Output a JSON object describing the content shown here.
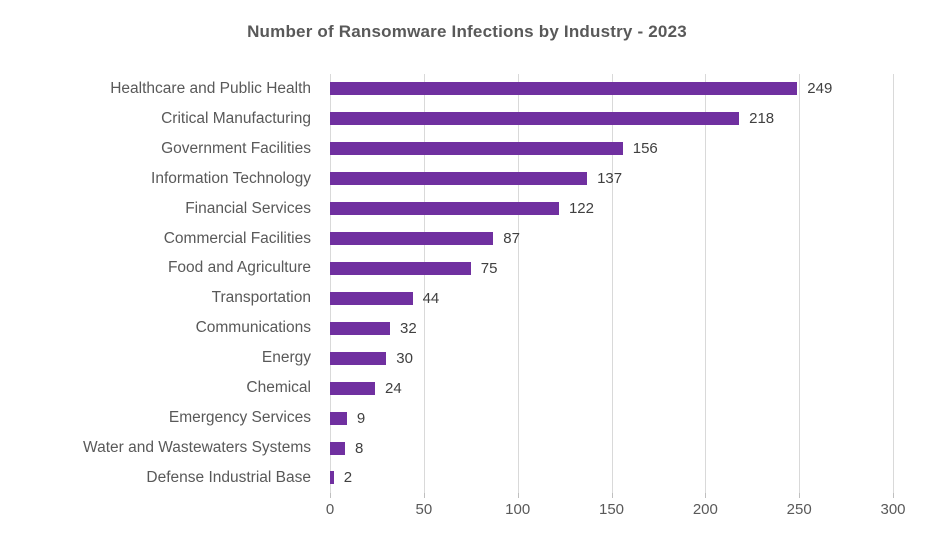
{
  "chart_data": {
    "type": "bar",
    "orientation": "horizontal",
    "title": "Number of Ransomware Infections by Industry - 2023",
    "categories": [
      "Healthcare and Public Health",
      "Critical Manufacturing",
      "Government Facilities",
      "Information Technology",
      "Financial Services",
      "Commercial Facilities",
      "Food and Agriculture",
      "Transportation",
      "Communications",
      "Energy",
      "Chemical",
      "Emergency Services",
      "Water and Wastewaters Systems",
      "Defense Industrial Base"
    ],
    "values": [
      249,
      218,
      156,
      137,
      122,
      87,
      75,
      44,
      32,
      30,
      24,
      9,
      8,
      2
    ],
    "data_labels": [
      249,
      218,
      156,
      137,
      122,
      87,
      75,
      44,
      32,
      30,
      24,
      9,
      8,
      2
    ],
    "xlabel": "",
    "ylabel": "",
    "xlim": [
      0,
      300
    ],
    "xticks": [
      0,
      50,
      100,
      150,
      200,
      250,
      300
    ],
    "grid": true,
    "legend": "none",
    "colors": {
      "bar": "#7030A0",
      "gridline": "#d9d9d9",
      "title_text": "#595959",
      "category_text": "#595959",
      "value_text": "#404040",
      "tick_text": "#595959",
      "background": "#ffffff"
    }
  }
}
